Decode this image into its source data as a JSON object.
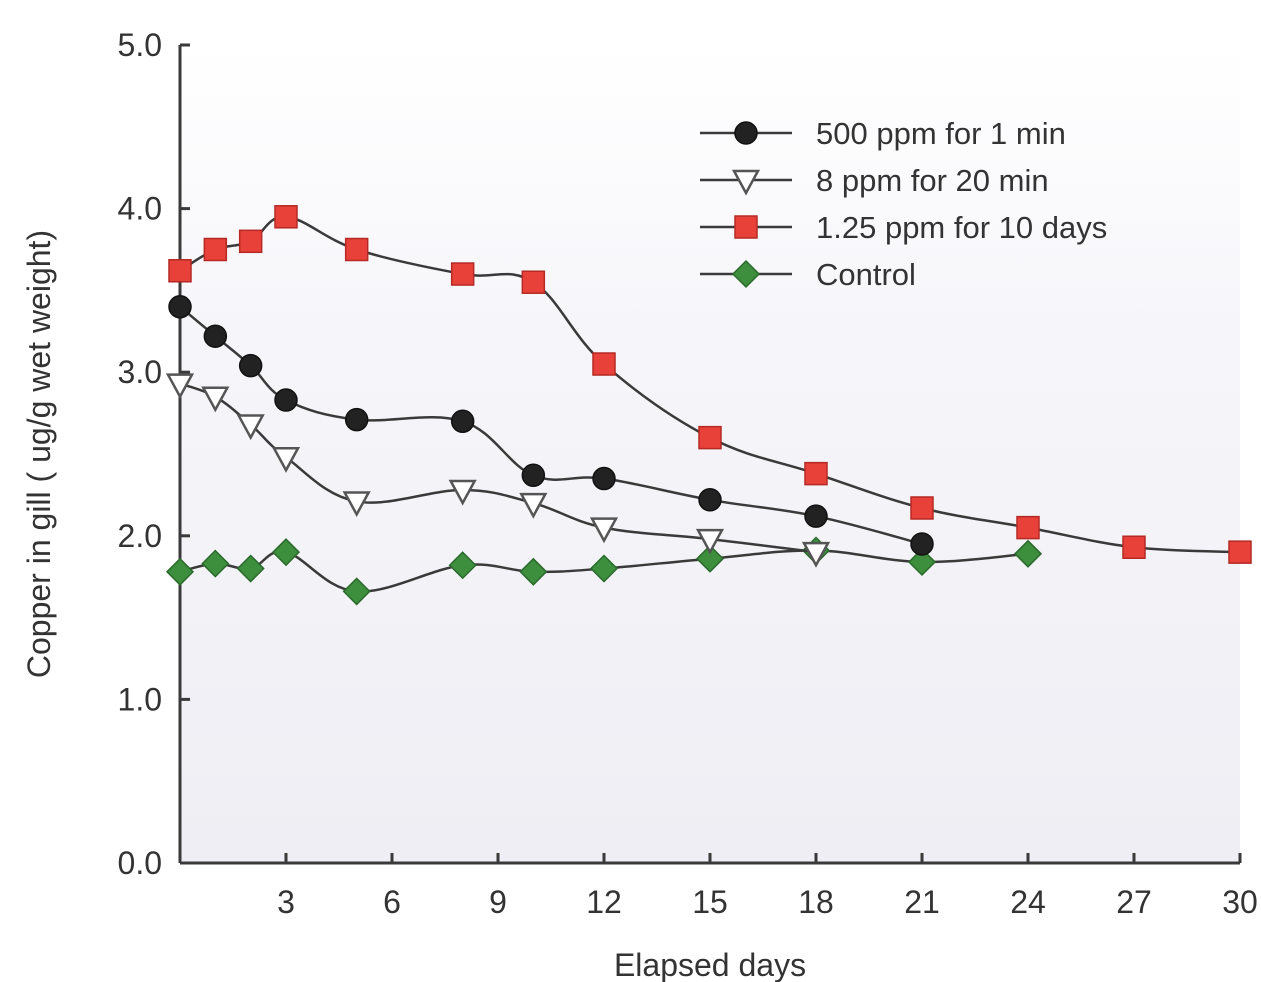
{
  "chart_data": {
    "type": "line",
    "title": "",
    "xlabel": "Elapsed days",
    "ylabel": "Copper in gill ( ug/g wet weight)",
    "xlim": [
      0,
      30
    ],
    "ylim": [
      0,
      5.0
    ],
    "xticks": [
      3,
      6,
      9,
      12,
      15,
      18,
      21,
      24,
      27,
      30
    ],
    "yticks": [
      0.0,
      1.0,
      2.0,
      3.0,
      4.0,
      5.0
    ],
    "xtick_labels": [
      "3",
      "6",
      "9",
      "12",
      "15",
      "18",
      "21",
      "24",
      "27",
      "30"
    ],
    "ytick_labels": [
      "0.0",
      "1.0",
      "2.0",
      "3.0",
      "4.0",
      "5.0"
    ],
    "grid": false,
    "legend_position": "top-right",
    "series": [
      {
        "name": "500 ppm for 1 min",
        "marker": "circle",
        "color": "#222222",
        "x": [
          0,
          1,
          2,
          3,
          5,
          8,
          10,
          12,
          15,
          18,
          21
        ],
        "y": [
          3.4,
          3.22,
          3.04,
          2.83,
          2.71,
          2.7,
          2.37,
          2.35,
          2.22,
          2.12,
          1.95
        ]
      },
      {
        "name": "8 ppm for 20 min",
        "marker": "triangle-down",
        "color": "#555555",
        "x": [
          0,
          1,
          2,
          3,
          5,
          8,
          10,
          12,
          15,
          18
        ],
        "y": [
          2.93,
          2.85,
          2.68,
          2.48,
          2.21,
          2.28,
          2.2,
          2.05,
          1.98,
          1.9
        ]
      },
      {
        "name": "1.25 ppm for 10 days",
        "marker": "square",
        "color": "#e8413a",
        "x": [
          0,
          1,
          2,
          3,
          5,
          8,
          10,
          12,
          15,
          18,
          21,
          24,
          27,
          30
        ],
        "y": [
          3.62,
          3.75,
          3.8,
          3.95,
          3.75,
          3.6,
          3.55,
          3.05,
          2.6,
          2.38,
          2.17,
          2.05,
          1.93,
          1.9
        ]
      },
      {
        "name": "Control",
        "marker": "diamond",
        "color": "#3d8f3e",
        "x": [
          0,
          1,
          2,
          3,
          5,
          8,
          10,
          12,
          15,
          18,
          21,
          24
        ],
        "y": [
          1.78,
          1.83,
          1.8,
          1.9,
          1.66,
          1.82,
          1.78,
          1.8,
          1.86,
          1.91,
          1.84,
          1.89
        ]
      }
    ]
  }
}
